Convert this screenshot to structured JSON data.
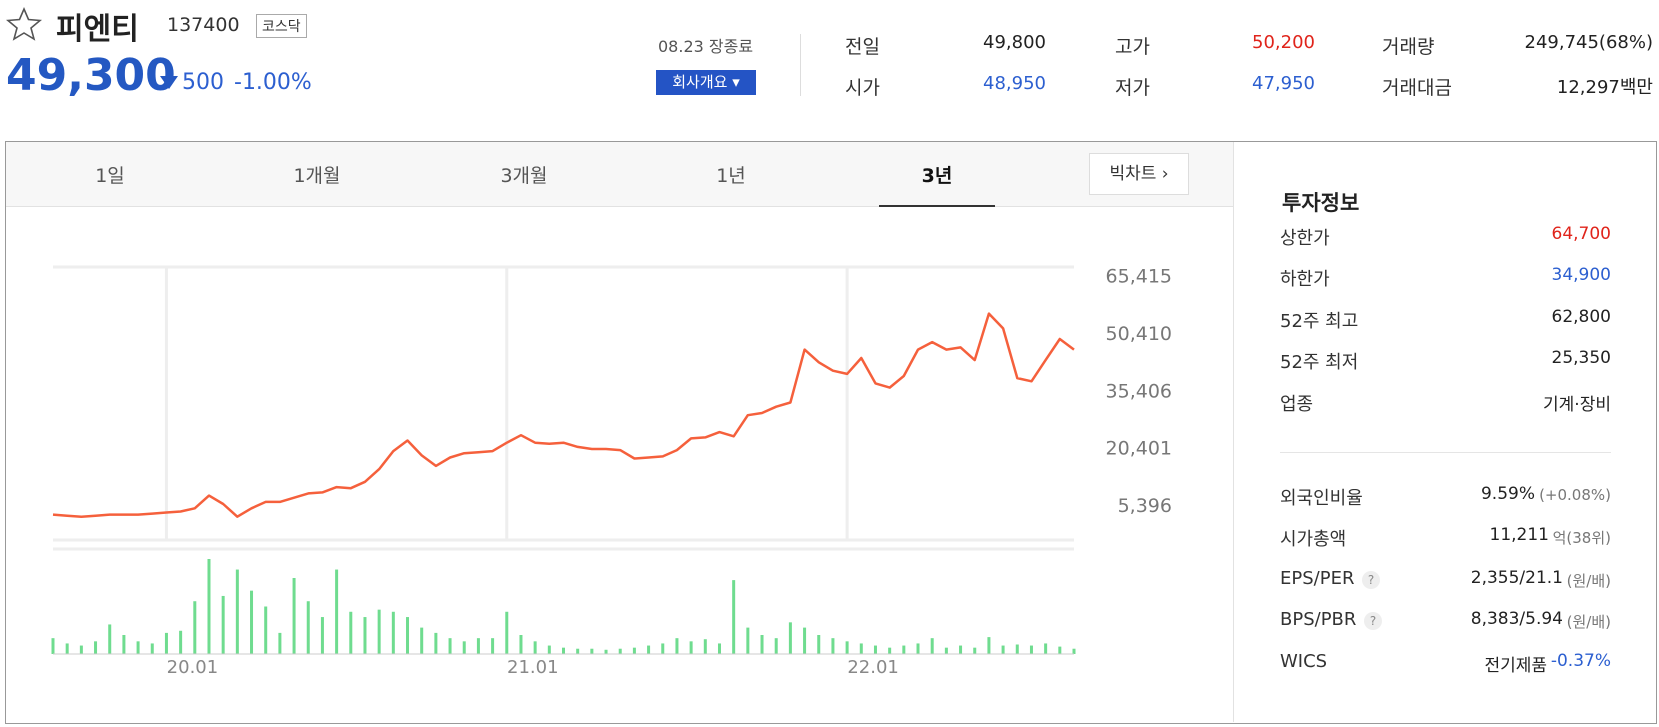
{
  "header": {
    "name": "피엔티",
    "code": "137400",
    "market": "코스닥",
    "price": "49,300",
    "change": "500",
    "change_pct": "-1.00%",
    "status": "08.23 장종료",
    "company_button": "회사개요"
  },
  "summary": [
    {
      "label": "전일",
      "value": "49,800"
    },
    {
      "label": "시가",
      "value": "48,950"
    },
    {
      "label": "고가",
      "value": "50,200"
    },
    {
      "label": "저가",
      "value": "47,950"
    },
    {
      "label": "거래량",
      "value": "249,745(68%)"
    },
    {
      "label": "거래대금",
      "value": "12,297백만"
    }
  ],
  "tabs": [
    "1일",
    "1개월",
    "3개월",
    "1년",
    "3년"
  ],
  "big_chart": "빅차트",
  "chart_data": {
    "type": "line",
    "categories": [
      null,
      null,
      null,
      null,
      null,
      null,
      null,
      null,
      "20.01",
      null,
      null,
      null,
      null,
      null,
      null,
      null,
      null,
      null,
      null,
      null,
      null,
      null,
      null,
      null,
      null,
      null,
      null,
      null,
      null,
      null,
      null,
      null,
      "21.01",
      null,
      null,
      null,
      null,
      null,
      null,
      null,
      null,
      null,
      null,
      null,
      null,
      null,
      null,
      null,
      null,
      null,
      null,
      null,
      null,
      null,
      null,
      null,
      "22.01",
      null,
      null,
      null,
      null,
      null,
      null,
      null,
      null,
      null,
      null,
      null,
      null,
      null,
      null,
      null,
      null
    ],
    "values": [
      2900,
      2630,
      2350,
      2630,
      2900,
      2900,
      2900,
      3180,
      3460,
      3730,
      4560,
      7880,
      5670,
      2350,
      4560,
      6220,
      6220,
      7330,
      8440,
      8710,
      10100,
      9820,
      11480,
      14800,
      19500,
      22270,
      18390,
      15630,
      17840,
      18950,
      19220,
      19500,
      21710,
      23650,
      21710,
      21440,
      21710,
      20610,
      20050,
      20050,
      19780,
      17560,
      17840,
      18120,
      19780,
      22820,
      23100,
      24480,
      23370,
      28900,
      29460,
      31120,
      32220,
      46050,
      42730,
      40520,
      39690,
      43840,
      37200,
      36100,
      39140,
      46050,
      47990,
      46050,
      46600,
      43290,
      55460,
      51590,
      38590,
      37760,
      43290,
      48820,
      46050
    ],
    "color": "#f5603c",
    "volume": [
      15,
      10,
      8,
      12,
      28,
      18,
      12,
      10,
      20,
      22,
      50,
      90,
      55,
      80,
      60,
      45,
      20,
      72,
      50,
      35,
      80,
      40,
      35,
      42,
      40,
      35,
      25,
      20,
      15,
      12,
      15,
      15,
      40,
      18,
      12,
      8,
      6,
      5,
      5,
      4,
      5,
      6,
      8,
      10,
      15,
      12,
      14,
      10,
      70,
      25,
      18,
      15,
      30,
      25,
      18,
      15,
      12,
      10,
      8,
      6,
      8,
      10,
      15,
      6,
      8,
      6,
      16,
      8,
      9,
      8,
      10,
      7,
      5
    ],
    "volume_color": "#6fdc8f",
    "ylim": [
      -3731,
      67628
    ],
    "yticks": [
      {
        "value": 5396,
        "label": "5,396"
      },
      {
        "value": 20401,
        "label": "20,401"
      },
      {
        "value": 35406,
        "label": "35,406"
      },
      {
        "value": 50410,
        "label": "50,410"
      },
      {
        "value": 65415,
        "label": "65,415"
      }
    ]
  },
  "invest": {
    "title": "투자정보",
    "rows": [
      {
        "label": "상한가",
        "value": "64,700"
      },
      {
        "label": "하한가",
        "value": "34,900"
      },
      {
        "label": "52주 최고",
        "value": "62,800"
      },
      {
        "label": "52주 최저",
        "value": "25,350"
      },
      {
        "label": "업종",
        "value": "기계·장비"
      }
    ],
    "details": [
      {
        "label": "외국인비율",
        "value": "9.59%",
        "note": "(+0.08%)"
      },
      {
        "label": "시가총액",
        "value": "11,211",
        "note": "억(38위)"
      },
      {
        "label": "EPS/PER",
        "value": "2,355/21.1",
        "note": "(원/배)"
      },
      {
        "label": "BPS/PBR",
        "value": "8,383/5.94",
        "note": "(원/배)"
      },
      {
        "label": "WICS",
        "value": "전기제품",
        "note": "-0.37%"
      }
    ]
  }
}
